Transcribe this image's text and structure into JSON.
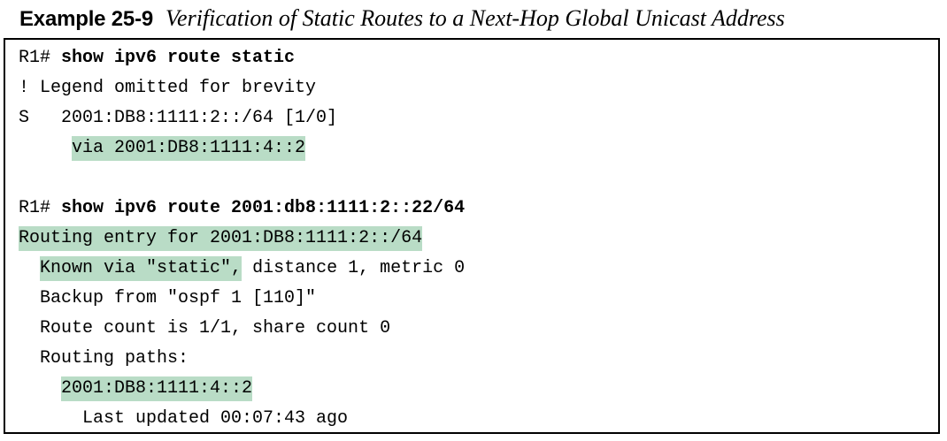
{
  "caption": {
    "label": "Example 25-9",
    "title": "Verification of Static Routes to a Next-Hop Global Unicast Address"
  },
  "lines": {
    "l1": {
      "prompt": "R1# ",
      "command": "show ipv6 route static"
    },
    "l2": "! Legend omitted for brevity",
    "l3": "S   2001:DB8:1111:2::/64 [1/0]",
    "l4": {
      "indent": "     ",
      "highlight": "via 2001:DB8:1111:4::2"
    },
    "l6": {
      "prompt": "R1# ",
      "command": "show ipv6 route 2001:db8:1111:2::22/64"
    },
    "l7": {
      "highlight": "Routing entry for 2001:DB8:1111:2::/64"
    },
    "l8": {
      "indent": "  ",
      "highlight": "Known via \"static\",",
      "rest": " distance 1, metric 0"
    },
    "l9": "  Backup from \"ospf 1 [110]\"",
    "l10": "  Route count is 1/1, share count 0",
    "l11": "  Routing paths:",
    "l12": {
      "indent": "    ",
      "highlight": "2001:DB8:1111:4::2"
    },
    "l13": "      Last updated 00:07:43 ago"
  },
  "colors": {
    "highlight": "#b9dcc6",
    "border": "#000000"
  }
}
